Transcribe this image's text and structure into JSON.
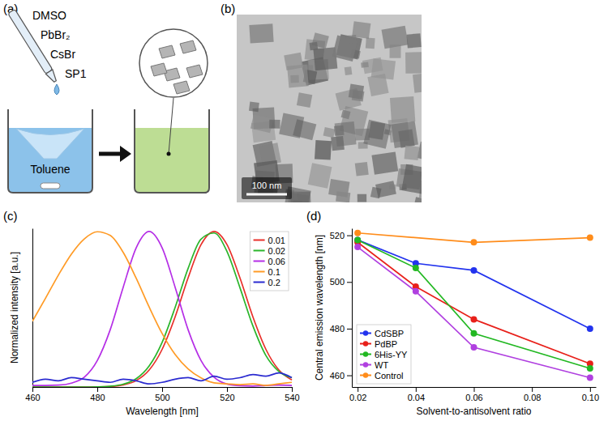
{
  "panel_labels": [
    "(a)",
    "(b)",
    "(c)",
    "(d)"
  ],
  "schematic": {
    "reagents": [
      "DMSO",
      "PbBr₂",
      "CsBr",
      "SP1"
    ],
    "solvent": "Toluene"
  },
  "micrograph": {
    "scale_bar": "100 nm"
  },
  "chart_data": [
    {
      "type": "line",
      "x_label": "Wavelength [nm]",
      "y_label": "Normalized intensity [a.u.]",
      "x": [
        460,
        464,
        468,
        472,
        476,
        480,
        484,
        488,
        492,
        496,
        500,
        504,
        508,
        512,
        516,
        520,
        524,
        528,
        532,
        536,
        540
      ],
      "series": [
        {
          "name": "0.01",
          "color": "#e8302a",
          "values": [
            0,
            0,
            0,
            0,
            0,
            0.001,
            0.003,
            0.013,
            0.041,
            0.109,
            0.242,
            0.45,
            0.701,
            0.915,
            1,
            0.915,
            0.701,
            0.45,
            0.242,
            0.109,
            0.045
          ]
        },
        {
          "name": "0.02",
          "color": "#2bb52b",
          "values": [
            0,
            0,
            0,
            0,
            0,
            0.001,
            0.005,
            0.018,
            0.053,
            0.135,
            0.287,
            0.511,
            0.762,
            0.951,
            0.99,
            0.871,
            0.638,
            0.392,
            0.202,
            0.1,
            0.06
          ]
        },
        {
          "name": "0.06",
          "color": "#b52ee6",
          "values": [
            0.01,
            0.01,
            0.012,
            0.025,
            0.063,
            0.17,
            0.369,
            0.642,
            0.895,
            1,
            0.895,
            0.642,
            0.369,
            0.17,
            0.063,
            0.019,
            0.008,
            0.006,
            0.01,
            0.012,
            0.01
          ]
        },
        {
          "name": "0.1",
          "color": "#ff9b26",
          "values": [
            0.423,
            0.569,
            0.719,
            0.854,
            0.952,
            0.998,
            0.974,
            0.865,
            0.699,
            0.514,
            0.344,
            0.209,
            0.116,
            0.058,
            0.027,
            0.02,
            0.015,
            0.02,
            0.01,
            0.02,
            0.03
          ]
        },
        {
          "name": "0.2",
          "color": "#2a2ad0",
          "values": [
            0.03,
            0.05,
            0.04,
            0.06,
            0.05,
            0.04,
            0.03,
            0.05,
            0.04,
            0.02,
            0.03,
            0.05,
            0.06,
            0.04,
            0.07,
            0.05,
            0.06,
            0.08,
            0.07,
            0.09,
            0.06
          ]
        }
      ],
      "xlim": [
        460,
        540
      ],
      "xticks": [
        460,
        480,
        500,
        520,
        540
      ],
      "ylim": [
        0,
        1.02
      ],
      "tick_labels": "x",
      "legend": "top-right"
    },
    {
      "type": "line",
      "marker": "circle",
      "x_label": "Solvent-to-antisolvent ratio",
      "y_label": "Central emission wavelength [nm]",
      "x": [
        0.02,
        0.04,
        0.06,
        0.1
      ],
      "series": [
        {
          "name": "CdSBP",
          "color": "#2233ee",
          "values": [
            518,
            508,
            505,
            480
          ]
        },
        {
          "name": "PdBP",
          "color": "#e8201a",
          "values": [
            517,
            498,
            484,
            465
          ]
        },
        {
          "name": "6His-YY",
          "color": "#22b822",
          "values": [
            518,
            506,
            478,
            463
          ]
        },
        {
          "name": "WT",
          "color": "#b040e0",
          "values": [
            515,
            496,
            472,
            459
          ]
        },
        {
          "name": "Control",
          "color": "#ff8c1a",
          "x": [
            0.02,
            0.06,
            0.1
          ],
          "values": [
            521,
            517,
            519
          ]
        }
      ],
      "xlim": [
        0.018,
        0.102
      ],
      "xticks": [
        0.02,
        0.04,
        0.06,
        0.08,
        {
          "value": 0.1,
          "label": "0.10"
        }
      ],
      "ylim": [
        455,
        523
      ],
      "yticks": [
        460,
        480,
        500,
        520
      ],
      "legend": "bottom-left"
    }
  ]
}
